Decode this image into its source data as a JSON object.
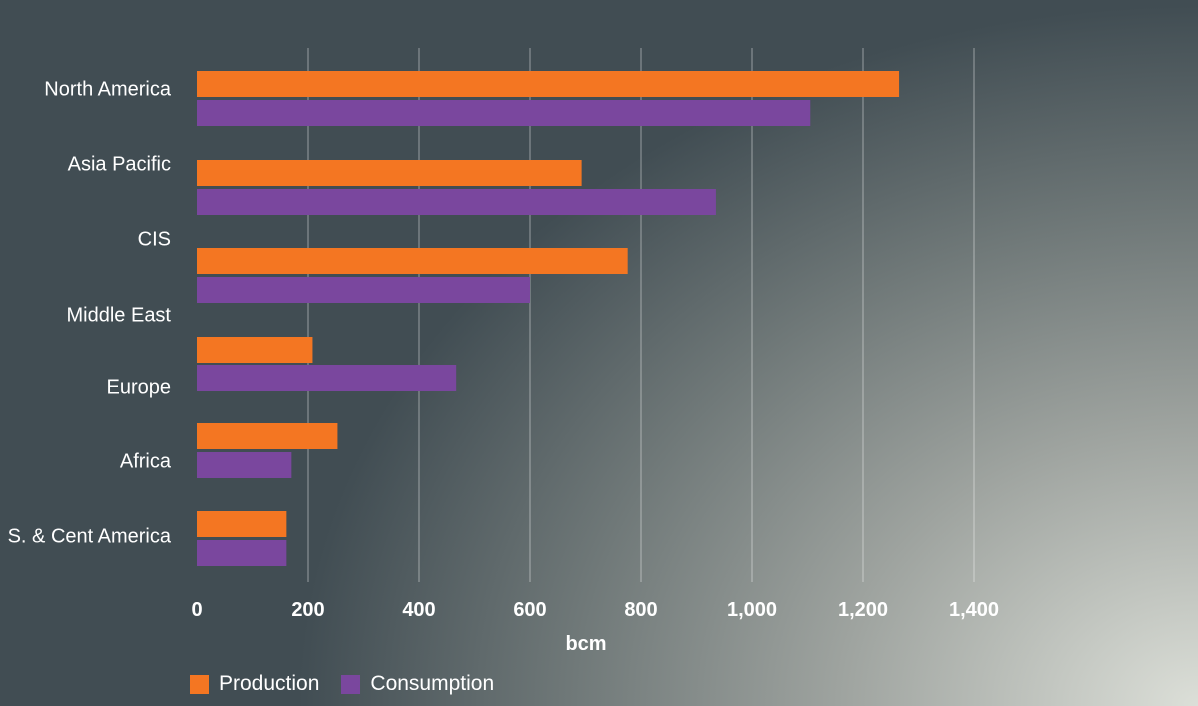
{
  "chart_data": {
    "type": "bar",
    "orientation": "horizontal",
    "categories": [
      "North America",
      "Asia Pacific",
      "CIS",
      "Middle East",
      "Europe",
      "Africa",
      "S. & Cent America"
    ],
    "series": [
      {
        "name": "Production",
        "color": "#f47622",
        "values": [
          1265,
          693,
          776,
          0,
          208,
          253,
          161
        ]
      },
      {
        "name": "Consumption",
        "color": "#7a479e",
        "values": [
          1105,
          935,
          600,
          0,
          467,
          170,
          161
        ]
      }
    ],
    "xlabel": "bcm",
    "ylabel": "",
    "xlim": [
      0,
      1400
    ],
    "ticks": [
      0,
      200,
      400,
      600,
      800,
      1000,
      1200,
      1400
    ],
    "tick_labels": [
      "0",
      "200",
      "400",
      "600",
      "800",
      "1,000",
      "1,200",
      "1,400"
    ],
    "grid": true,
    "legend_position": "bottom-left"
  }
}
